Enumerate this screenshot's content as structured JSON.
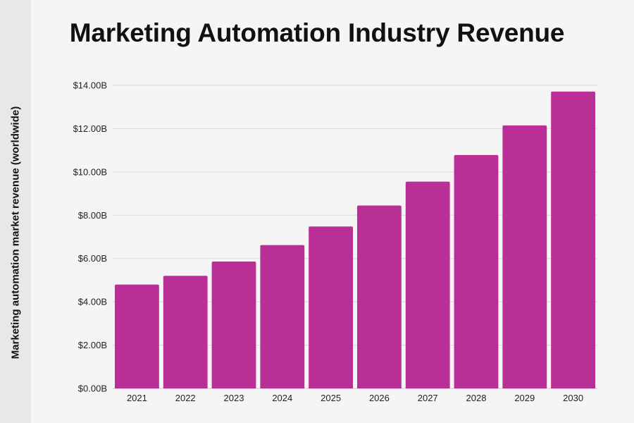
{
  "chart_data": {
    "type": "bar",
    "title": "Marketing Automation Industry Revenue",
    "xlabel": "",
    "ylabel": "Marketing automation market revenue (worldwide)",
    "categories": [
      "2021",
      "2022",
      "2023",
      "2024",
      "2025",
      "2026",
      "2027",
      "2028",
      "2029",
      "2030"
    ],
    "values": [
      4.8,
      5.2,
      5.86,
      6.62,
      7.48,
      8.45,
      9.55,
      10.78,
      12.15,
      13.71
    ],
    "value_unit": "billion USD",
    "ylim": [
      0,
      14
    ],
    "yticks": [
      0,
      2,
      4,
      6,
      8,
      10,
      12,
      14
    ],
    "ytick_labels": [
      "$0.00B",
      "$2.00B",
      "$4.00B",
      "$6.00B",
      "$8.00B",
      "$10.00B",
      "$12.00B",
      "$14.00B"
    ],
    "grid": true,
    "legend": "none",
    "colors": {
      "bar": "#b92f96",
      "grid": "#d9d9d9",
      "axis": "#cfcfcf",
      "background": "#f5f5f5"
    }
  }
}
